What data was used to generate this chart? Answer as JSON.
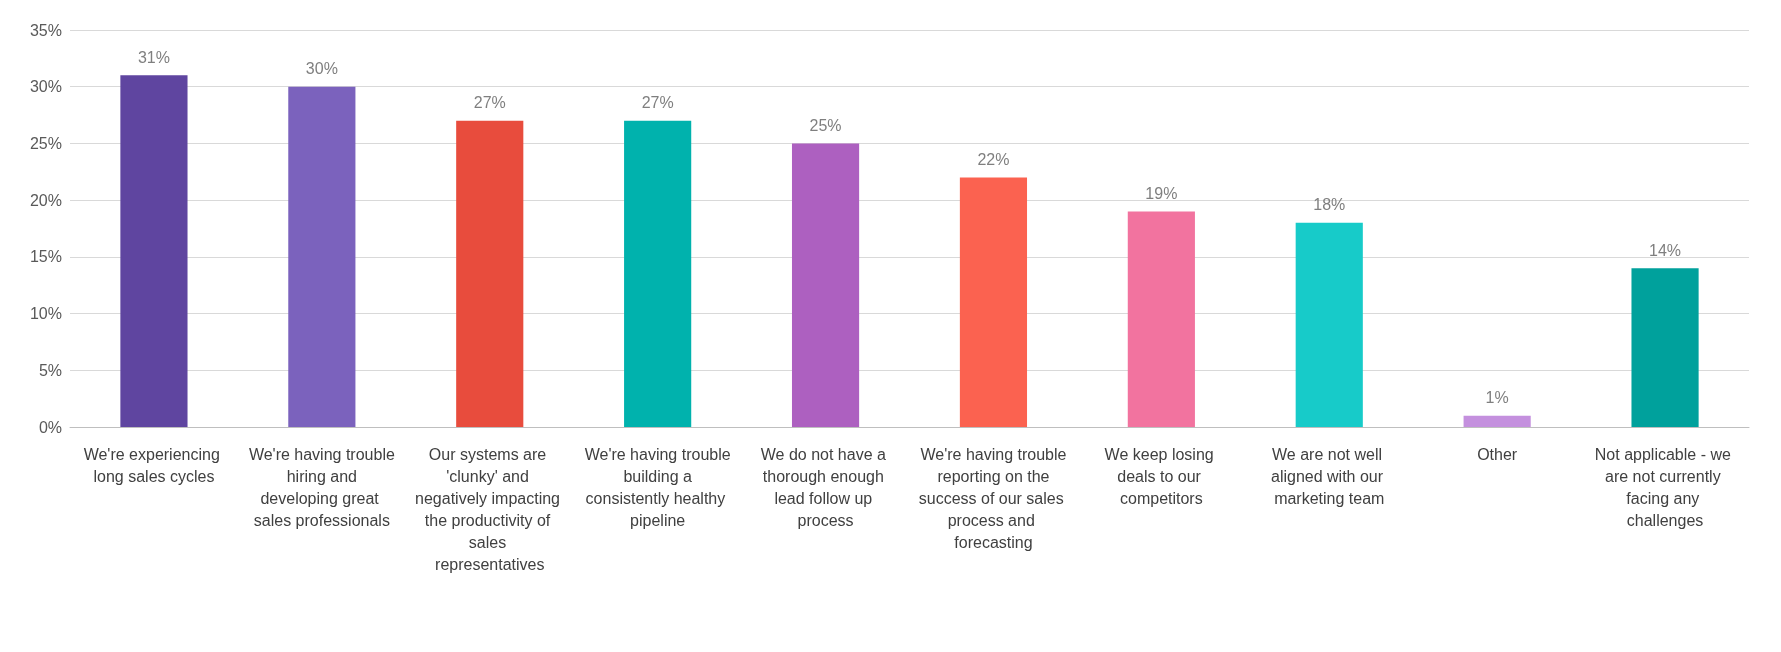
{
  "chart_data": {
    "type": "bar",
    "categories": [
      "We're experiencing long sales cycles",
      "We're having trouble hiring and developing great sales professionals",
      "Our systems are 'clunky' and negatively impacting the productivity of sales representatives",
      "We're having trouble building a consistently healthy pipeline",
      "We do not have a thorough enough lead follow up process",
      "We're having trouble reporting on the success of our sales process and forecasting",
      "We keep losing deals to our competitors",
      "We are not well aligned with our marketing team",
      "Other",
      "Not applicable - we are not currently facing any challenges"
    ],
    "values": [
      31,
      30,
      27,
      27,
      25,
      22,
      19,
      18,
      1,
      14
    ],
    "colors": [
      "#5f45a0",
      "#7b62bd",
      "#e84c3d",
      "#00b2ad",
      "#ad60c0",
      "#fb6250",
      "#f2739f",
      "#17cbc9",
      "#c490de",
      "#00a19c"
    ],
    "ylim": [
      0,
      35
    ],
    "yticks": [
      {
        "value": 0,
        "label": "0%"
      },
      {
        "value": 5,
        "label": "5%"
      },
      {
        "value": 10,
        "label": "10%"
      },
      {
        "value": 15,
        "label": "15%"
      },
      {
        "value": 20,
        "label": "20%"
      },
      {
        "value": 25,
        "label": "25%"
      },
      {
        "value": 30,
        "label": "30%"
      },
      {
        "value": 35,
        "label": "35%"
      }
    ],
    "value_labels": [
      "31%",
      "30%",
      "27%",
      "27%",
      "25%",
      "22%",
      "19%",
      "18%",
      "1%",
      "14%"
    ],
    "grid": "y"
  }
}
